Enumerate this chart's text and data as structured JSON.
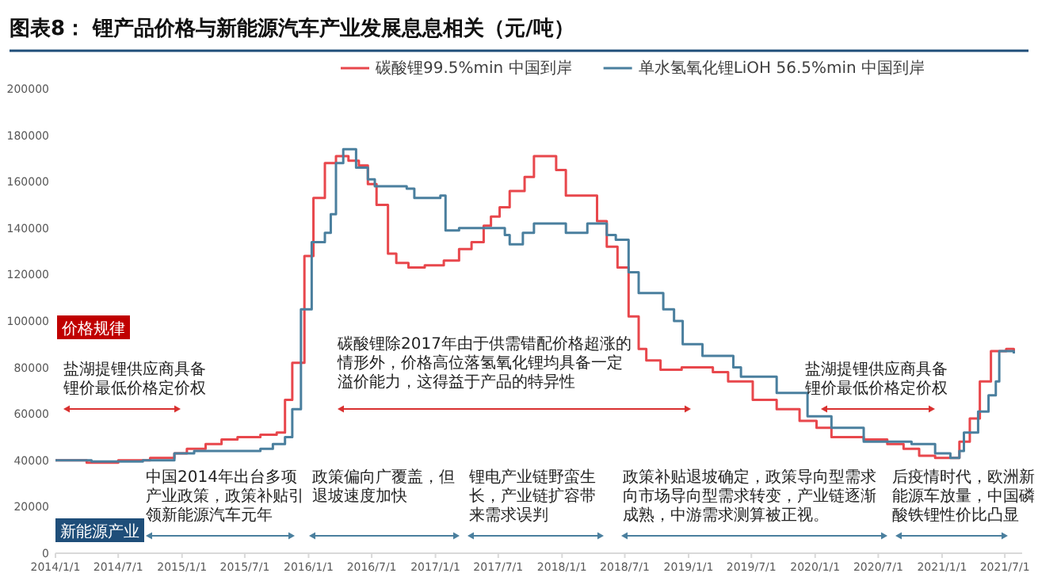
{
  "chart_data": {
    "type": "step",
    "title": "图表8：  锂产品价格与新能源汽车产业发展息息相关（元/吨）",
    "legend": "top",
    "xlim": [
      "2014-01-01",
      "2021-08-20"
    ],
    "xticks": [
      {
        "value": "2014-01-01",
        "label": "2014/1/1"
      },
      {
        "value": "2014-07-01",
        "label": "2014/7/1"
      },
      {
        "value": "2015-01-01",
        "label": "2015/1/1"
      },
      {
        "value": "2015-07-01",
        "label": "2015/7/1"
      },
      {
        "value": "2016-01-01",
        "label": "2016/1/1"
      },
      {
        "value": "2016-07-01",
        "label": "2016/7/1"
      },
      {
        "value": "2017-01-01",
        "label": "2017/1/1"
      },
      {
        "value": "2017-07-01",
        "label": "2017/7/1"
      },
      {
        "value": "2018-01-01",
        "label": "2018/1/1"
      },
      {
        "value": "2018-07-01",
        "label": "2018/7/1"
      },
      {
        "value": "2019-01-01",
        "label": "2019/1/1"
      },
      {
        "value": "2019-07-01",
        "label": "2019/7/1"
      },
      {
        "value": "2020-01-01",
        "label": "2020/1/1"
      },
      {
        "value": "2020-07-01",
        "label": "2020/7/1"
      },
      {
        "value": "2021-01-01",
        "label": "2021/1/1"
      },
      {
        "value": "2021-07-01",
        "label": "2021/7/1"
      }
    ],
    "ylim": [
      0,
      200000
    ],
    "yticks": [
      0,
      20000,
      40000,
      60000,
      80000,
      100000,
      120000,
      140000,
      160000,
      180000,
      200000
    ],
    "series": [
      {
        "name": "碳酸锂99.5%min 中国到岸",
        "color": "#e8474c",
        "x": [
          "2014-01-01",
          "2014-04-01",
          "2014-07-01",
          "2014-10-01",
          "2014-12-10",
          "2015-01-15",
          "2015-03-10",
          "2015-04-25",
          "2015-06-10",
          "2015-08-15",
          "2015-10-01",
          "2015-10-25",
          "2015-11-15",
          "2015-12-20",
          "2016-01-15",
          "2016-02-17",
          "2016-03-20",
          "2016-04-25",
          "2016-05-25",
          "2016-06-20",
          "2016-07-15",
          "2016-08-17",
          "2016-09-10",
          "2016-10-15",
          "2016-12-01",
          "2017-01-25",
          "2017-03-10",
          "2017-04-15",
          "2017-05-20",
          "2017-06-10",
          "2017-07-05",
          "2017-08-03",
          "2017-09-15",
          "2017-10-12",
          "2017-12-15",
          "2018-01-12",
          "2018-04-12",
          "2018-05-10",
          "2018-06-10",
          "2018-07-12",
          "2018-08-10",
          "2018-09-01",
          "2018-10-12",
          "2018-12-12",
          "2019-03-12",
          "2019-04-25",
          "2019-07-05",
          "2019-09-12",
          "2019-11-17",
          "2020-01-05",
          "2020-02-17",
          "2020-05-20",
          "2020-07-27",
          "2020-09-12",
          "2020-10-27",
          "2020-12-12",
          "2021-02-20",
          "2021-03-22",
          "2021-04-20",
          "2021-05-22",
          "2021-07-05",
          "2021-07-27"
        ],
        "values": [
          40000,
          39000,
          40000,
          41000,
          43000,
          45000,
          47000,
          49000,
          50000,
          51000,
          52000,
          66000,
          82000,
          128000,
          153000,
          168000,
          171000,
          169000,
          167000,
          159000,
          150000,
          129000,
          125000,
          123000,
          124000,
          126000,
          131000,
          134000,
          141000,
          145000,
          149000,
          156000,
          162000,
          171000,
          165000,
          154000,
          143000,
          132000,
          123000,
          102000,
          88000,
          83000,
          79000,
          80000,
          78000,
          74000,
          66000,
          62000,
          57000,
          54000,
          50000,
          49000,
          47000,
          45000,
          42000,
          41000,
          48000,
          58000,
          74000,
          87000,
          88000,
          86000
        ]
      },
      {
        "name": "单水氢氧化锂LiOH 56.5%min 中国到岸",
        "color": "#4a7f9e",
        "x": [
          "2014-01-01",
          "2014-04-15",
          "2014-09-10",
          "2014-12-10",
          "2015-02-05",
          "2015-06-10",
          "2015-08-15",
          "2015-09-20",
          "2015-10-25",
          "2015-11-15",
          "2015-12-10",
          "2016-01-10",
          "2016-02-17",
          "2016-03-05",
          "2016-03-20",
          "2016-04-10",
          "2016-05-17",
          "2016-06-20",
          "2016-07-10",
          "2016-10-10",
          "2016-11-01",
          "2017-01-15",
          "2017-01-30",
          "2017-03-10",
          "2017-07-20",
          "2017-08-03",
          "2017-09-10",
          "2017-10-12",
          "2018-01-12",
          "2018-03-15",
          "2018-05-10",
          "2018-06-05",
          "2018-07-12",
          "2018-08-10",
          "2018-10-20",
          "2018-11-20",
          "2018-12-15",
          "2019-02-10",
          "2019-05-10",
          "2019-06-01",
          "2019-09-12",
          "2019-12-10",
          "2020-02-17",
          "2020-05-20",
          "2020-07-27",
          "2020-10-05",
          "2020-12-12",
          "2021-01-25",
          "2021-02-20",
          "2021-03-05",
          "2021-04-15",
          "2021-05-15",
          "2021-06-05",
          "2021-06-15",
          "2021-07-27"
        ],
        "values": [
          40000,
          39500,
          40000,
          43000,
          44000,
          44000,
          45000,
          47000,
          50000,
          62000,
          105000,
          134000,
          138000,
          146000,
          168000,
          174000,
          166000,
          161000,
          158000,
          157000,
          153000,
          154000,
          139000,
          140000,
          137000,
          133000,
          138000,
          142000,
          138000,
          142000,
          137000,
          135000,
          121000,
          112000,
          105000,
          100000,
          90000,
          85000,
          80000,
          76000,
          69000,
          59000,
          54000,
          48000,
          48000,
          47000,
          43000,
          41000,
          44000,
          52000,
          61000,
          68000,
          74000,
          87000,
          86000
        ]
      }
    ],
    "annotations": [
      "价格规律",
      "盐湖提锂供应商具备锂价最低价格定价权",
      "碳酸锂除2017年由于供需错配价格超涨的情形外，价格高位落氢氧化锂均具备一定溢价能力，这得益于产品的特异性",
      "盐湖提锂供应商具备锂价最低价格定价权",
      "新能源产业",
      "中国2014年出台多项产业政策，政策补贴引领新能源汽车元年",
      "政策偏向广覆盖，但退坡速度加快",
      "锂电产业链野蛮生长，产业链扩容带来需求误判",
      "政策补贴退坡确定，政策导向型需求向市场导向型需求转变，产业链逐渐成熟，中游需求测算被正视。",
      "后疫情时代，欧洲新能源车放量，中国磷酸铁锂性价比凸显"
    ]
  }
}
